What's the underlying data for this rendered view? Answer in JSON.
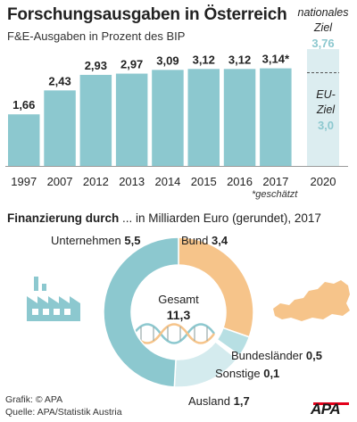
{
  "title": "Forschungsausgaben in Österreich",
  "subtitle": "F&E-Ausgaben in Prozent des BIP",
  "goals": {
    "national_label": "nationales Ziel",
    "national_line1": "nationales",
    "national_line2": "Ziel",
    "national_value": "3,76",
    "eu_line1": "EU-",
    "eu_line2": "Ziel",
    "eu_value": "3,0",
    "year": "2020"
  },
  "footnote": "*geschätzt",
  "financing": {
    "title_bold": "Finanzierung durch",
    "title_rest": " ... in Milliarden Euro (gerundet), 2017"
  },
  "credits": {
    "line1": "Grafik: © APA",
    "line2": "Quelle: APA/Statistik Austria"
  },
  "logo": "APA",
  "colors": {
    "bar": "#8cc8cf",
    "goal_bar": "#dcedf0",
    "unternehmen": "#8cc8cf",
    "bund": "#f6c48a",
    "bundeslaender": "#b7dfe3",
    "sonstige": "#ffffff",
    "ausland": "#d4ebee",
    "icon": "#8cc8cf",
    "austria": "#f6c48a"
  },
  "chart_data": [
    {
      "type": "bar",
      "title": "Forschungsausgaben in Österreich",
      "subtitle": "F&E-Ausgaben in Prozent des BIP",
      "categories": [
        "1997",
        "2007",
        "2012",
        "2013",
        "2014",
        "2015",
        "2016",
        "2017"
      ],
      "values": [
        1.66,
        2.43,
        2.93,
        2.97,
        3.09,
        3.12,
        3.12,
        3.14
      ],
      "value_labels": [
        "1,66",
        "2,43",
        "2,93",
        "2,97",
        "3,09",
        "3,12",
        "3,12",
        "3,14*"
      ],
      "goal": {
        "category": "2020",
        "national": 3.76,
        "eu": 3.0
      },
      "ylim": [
        0,
        3.76
      ]
    },
    {
      "type": "pie",
      "title": "Finanzierung durch ... in Milliarden Euro (gerundet), 2017",
      "center_label": "Gesamt",
      "center_value": "11,3",
      "total": 11.3,
      "slices": [
        {
          "name": "Unternehmen",
          "value": 5.5,
          "label": "5,5"
        },
        {
          "name": "Bund",
          "value": 3.4,
          "label": "3,4"
        },
        {
          "name": "Bundesländer",
          "value": 0.5,
          "label": "0,5"
        },
        {
          "name": "Sonstige",
          "value": 0.1,
          "label": "0,1"
        },
        {
          "name": "Ausland",
          "value": 1.7,
          "label": "1,7"
        }
      ]
    }
  ]
}
